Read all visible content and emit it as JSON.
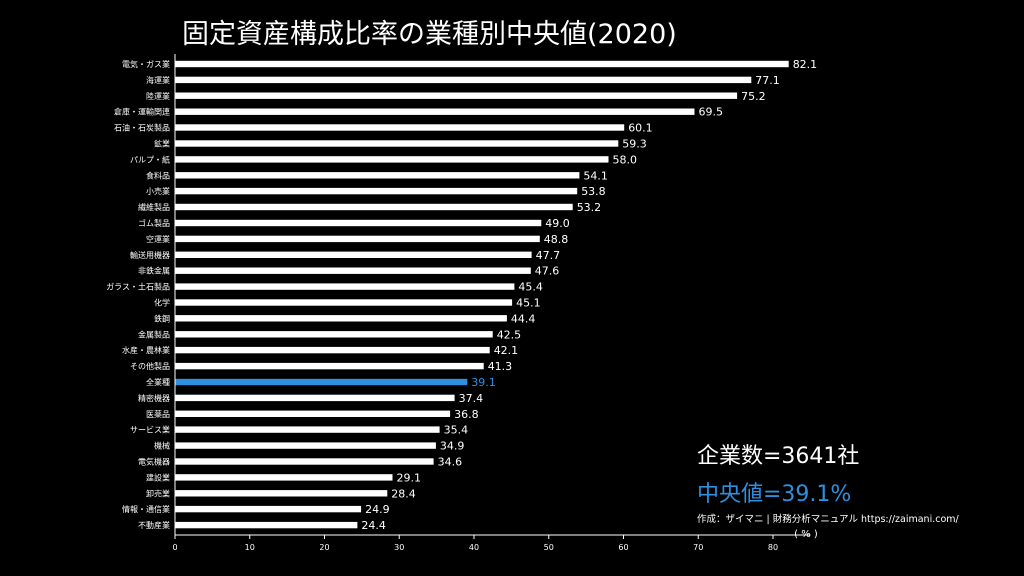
{
  "title": "固定資産構成比率の業種別中央値(2020)",
  "summary": {
    "company_count": "企業数=3641社",
    "median": "中央値=39.1%",
    "credit": "作成：ザイマニ | 財務分析マニュアル https://zaimani.com/"
  },
  "colors": {
    "background": "#000000",
    "bar": "#ffffff",
    "highlight": "#2e8fdf",
    "text": "#ffffff"
  },
  "chart_data": {
    "type": "bar",
    "orientation": "horizontal",
    "title": "固定資産構成比率の業種別中央値(2020)",
    "xlabel": "( % )",
    "ylabel": "",
    "xlim": [
      0,
      85
    ],
    "xticks": [
      0,
      10,
      20,
      30,
      40,
      50,
      60,
      70,
      80
    ],
    "grid": false,
    "highlight_category": "全業種",
    "categories": [
      "電気・ガス業",
      "海運業",
      "陸運業",
      "倉庫・運輸関連",
      "石油・石炭製品",
      "鉱業",
      "パルプ・紙",
      "食料品",
      "小売業",
      "繊維製品",
      "ゴム製品",
      "空運業",
      "輸送用機器",
      "非鉄金属",
      "ガラス・土石製品",
      "化学",
      "鉄鋼",
      "金属製品",
      "水産・農林業",
      "その他製品",
      "全業種",
      "精密機器",
      "医薬品",
      "サービス業",
      "機械",
      "電気機器",
      "建設業",
      "卸売業",
      "情報・通信業",
      "不動産業"
    ],
    "values": [
      82.1,
      77.1,
      75.2,
      69.5,
      60.1,
      59.3,
      58.0,
      54.1,
      53.8,
      53.2,
      49.0,
      48.8,
      47.7,
      47.6,
      45.4,
      45.1,
      44.4,
      42.5,
      42.1,
      41.3,
      39.1,
      37.4,
      36.8,
      35.4,
      34.9,
      34.6,
      29.1,
      28.4,
      24.9,
      24.4
    ],
    "value_labels": [
      "82.1",
      "77.1",
      "75.2",
      "69.5",
      "60.1",
      "59.3",
      "58.0",
      "54.1",
      "53.8",
      "53.2",
      "49.0",
      "48.8",
      "47.7",
      "47.6",
      "45.4",
      "45.1",
      "44.4",
      "42.5",
      "42.1",
      "41.3",
      "39.1",
      "37.4",
      "36.8",
      "35.4",
      "34.9",
      "34.6",
      "29.1",
      "28.4",
      "24.9",
      "24.4"
    ]
  }
}
